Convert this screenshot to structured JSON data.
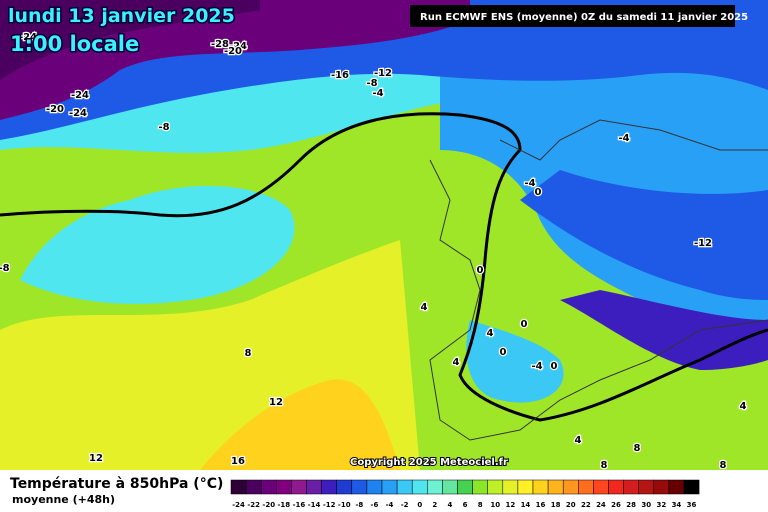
{
  "header": {
    "title": "lundi 13 janvier 2025",
    "time": "1:00 locale",
    "run": "Run ECMWF ENS (moyenne) 0Z du samedi 11 janvier 2025"
  },
  "map": {
    "contour_labels": [
      "-24",
      "-28",
      "-24",
      "-20",
      "-16",
      "-12",
      "-8",
      "-4",
      "-20",
      "-24",
      "-24",
      "-8",
      "-4",
      "-4",
      "0",
      "-12",
      "-8",
      "0",
      "4",
      "4",
      "0",
      "0",
      "4",
      "-4",
      "0",
      "8",
      "12",
      "12",
      "16",
      "4",
      "4",
      "8",
      "8",
      "8"
    ],
    "copyright": "Copyright 2025 Meteociel.fr"
  },
  "legend": {
    "title": "Température à 850hPa (°C)",
    "subtitle": "moyenne  (+48h)",
    "ticks": [
      -24,
      -22,
      -20,
      -18,
      -16,
      -14,
      -12,
      -10,
      -8,
      -6,
      -4,
      -2,
      0,
      2,
      4,
      6,
      8,
      10,
      12,
      14,
      16,
      18,
      20,
      22,
      24,
      26,
      28,
      30,
      32,
      34,
      36
    ],
    "colors": [
      "#2d0036",
      "#4b0060",
      "#6a007a",
      "#800080",
      "#8f1a8f",
      "#6a1ea6",
      "#3c1ebe",
      "#1e3cd2",
      "#1e5ae6",
      "#1e82f0",
      "#28a0f5",
      "#3cc8f5",
      "#50e6f0",
      "#6ef0d2",
      "#64e6a0",
      "#46d250",
      "#8ce628",
      "#bef028",
      "#e6f028",
      "#fff028",
      "#ffd21e",
      "#ffb41e",
      "#ff961e",
      "#ff6e1e",
      "#ff461e",
      "#f0281e",
      "#d21e1e",
      "#b41414",
      "#960a0a",
      "#640000",
      "#000000"
    ]
  }
}
